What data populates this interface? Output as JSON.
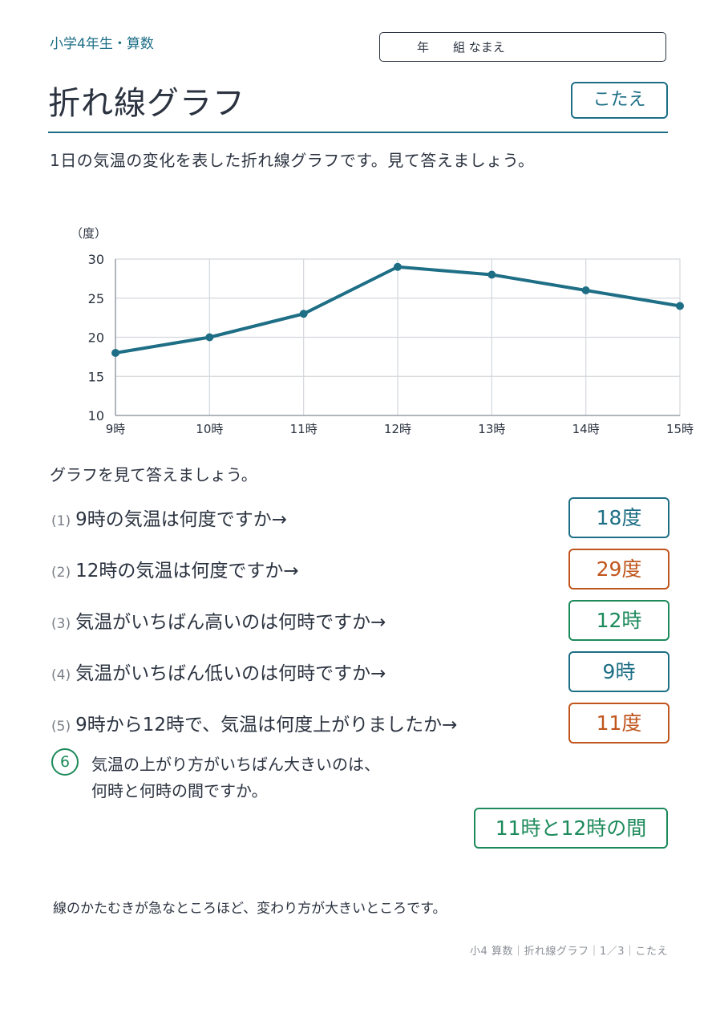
{
  "header": {
    "subject": "小学4年生・算数",
    "name_box": "年　　組 なまえ",
    "title": "折れ線グラフ",
    "answer_tag": "こたえ"
  },
  "intro": "1日の気温の変化を表した折れ線グラフです。見て答えましょう。",
  "chart_data": {
    "type": "line",
    "ylabel": "（度）",
    "categories": [
      "9時",
      "10時",
      "11時",
      "12時",
      "13時",
      "14時",
      "15時"
    ],
    "series": [
      {
        "values": [
          18,
          20,
          23,
          29,
          28,
          26,
          24
        ]
      }
    ],
    "ylim": [
      10,
      30
    ],
    "yticks": [
      10,
      15,
      20,
      25,
      30
    ],
    "grid": true,
    "color": "#1e6f86"
  },
  "questions_heading": "グラフを見て答えましょう。",
  "questions": [
    {
      "num": "(1)",
      "text": "9時の気温は何度ですか→",
      "answer": "18度",
      "color": "#1e6f86"
    },
    {
      "num": "(2)",
      "text": "12時の気温は何度ですか→",
      "answer": "29度",
      "color": "#c0561e"
    },
    {
      "num": "(3)",
      "text": "気温がいちばん高いのは何時ですか→",
      "answer": "12時",
      "color": "#1d8a5b"
    },
    {
      "num": "(4)",
      "text": "気温がいちばん低いのは何時ですか→",
      "answer": "9時",
      "color": "#1e6f86"
    },
    {
      "num": "(5)",
      "text": "9時から12時で、気温は何度上がりましたか→",
      "answer": "11度",
      "color": "#c0561e"
    }
  ],
  "q6": {
    "num": "6",
    "line1": "気温の上がり方がいちばん大きいのは、",
    "line2": "何時と何時の間ですか。",
    "answer": "11時と12時の間"
  },
  "note": "線のかたむきが急なところほど、変わり方が大きいところです。",
  "footer": "小4 算数｜折れ線グラフ｜1／3｜こたえ"
}
